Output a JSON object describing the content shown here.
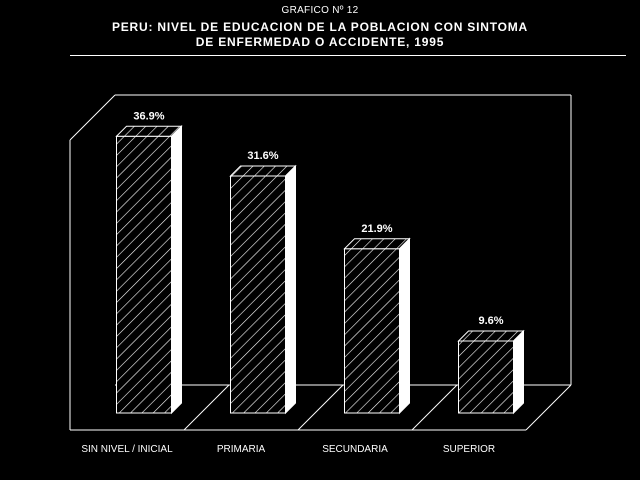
{
  "header": {
    "figure_number": "GRAFICO Nº 12",
    "title_line1": "PERU: NIVEL DE EDUCACION DE LA POBLACION CON SINTOMA",
    "title_line2": "DE ENFERMEDAD O ACCIDENTE, 1995"
  },
  "chart_data": {
    "type": "bar",
    "title": "PERU: NIVEL DE EDUCACION DE LA POBLACION CON SINTOMA DE ENFERMEDAD O ACCIDENTE, 1995",
    "categories": [
      "SIN NIVEL / INICIAL",
      "PRIMARIA",
      "SECUNDARIA",
      "SUPERIOR"
    ],
    "values": [
      36.9,
      31.6,
      21.9,
      9.6
    ],
    "data_labels": [
      "36.9%",
      "31.6%",
      "21.9%",
      "9.6%"
    ],
    "ylim": [
      0,
      40
    ],
    "grid": false,
    "legend": "none",
    "style": "3d-hatched"
  }
}
